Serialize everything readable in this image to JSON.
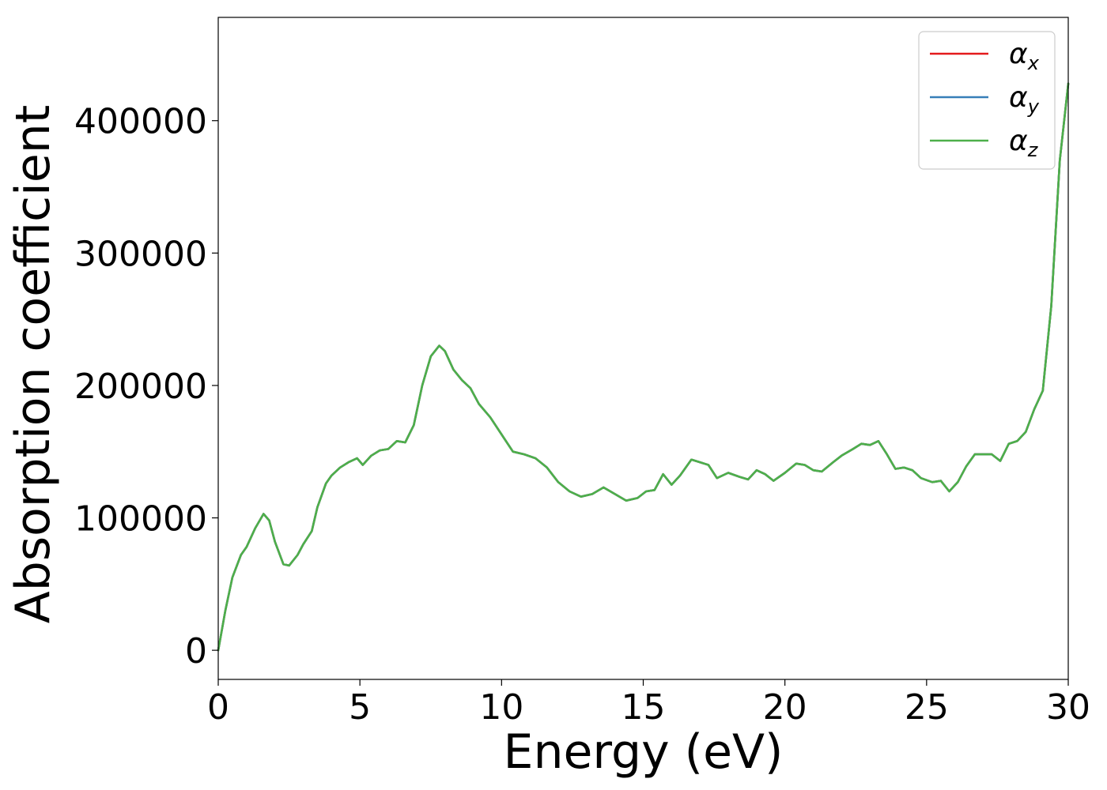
{
  "chart_data": {
    "type": "line",
    "title": "",
    "xlabel": "Energy (eV)",
    "ylabel": "Absorption coefficient",
    "xlim": [
      0,
      30
    ],
    "ylim": [
      -22000,
      478000
    ],
    "xticks": [
      0,
      5,
      10,
      15,
      20,
      25,
      30
    ],
    "yticks": [
      0,
      100000,
      200000,
      300000,
      400000
    ],
    "xtick_labels": [
      "0",
      "5",
      "10",
      "15",
      "20",
      "25",
      "30"
    ],
    "ytick_labels": [
      "0",
      "100000",
      "200000",
      "300000",
      "400000"
    ],
    "grid": false,
    "legend_position": "top-right",
    "x": [
      0,
      0.25,
      0.5,
      0.8,
      1.0,
      1.3,
      1.6,
      1.8,
      2.0,
      2.3,
      2.5,
      2.8,
      3.0,
      3.3,
      3.5,
      3.8,
      4.0,
      4.3,
      4.6,
      4.9,
      5.1,
      5.4,
      5.7,
      6.0,
      6.3,
      6.6,
      6.9,
      7.2,
      7.5,
      7.8,
      8.0,
      8.3,
      8.6,
      8.9,
      9.2,
      9.6,
      10.0,
      10.4,
      10.8,
      11.2,
      11.6,
      12.0,
      12.4,
      12.8,
      13.2,
      13.6,
      14.0,
      14.4,
      14.8,
      15.1,
      15.4,
      15.7,
      16.0,
      16.3,
      16.7,
      17.0,
      17.3,
      17.6,
      18.0,
      18.4,
      18.7,
      19.0,
      19.3,
      19.6,
      20.0,
      20.4,
      20.7,
      21.0,
      21.3,
      21.7,
      22.0,
      22.4,
      22.7,
      23.0,
      23.3,
      23.6,
      23.9,
      24.2,
      24.5,
      24.8,
      25.2,
      25.5,
      25.8,
      26.1,
      26.4,
      26.7,
      27.0,
      27.3,
      27.6,
      27.9,
      28.2,
      28.5,
      28.8,
      29.1,
      29.4,
      29.7,
      30.0
    ],
    "series": [
      {
        "name": "α",
        "subscript": "x",
        "color": "#e41a1c",
        "values": [
          0,
          30000,
          55000,
          72000,
          78000,
          92000,
          103000,
          98000,
          82000,
          65000,
          64000,
          72000,
          80000,
          90000,
          108000,
          126000,
          132000,
          138000,
          142000,
          145000,
          140000,
          147000,
          151000,
          152000,
          158000,
          157000,
          170000,
          200000,
          222000,
          230000,
          226000,
          212000,
          204000,
          198000,
          186000,
          176000,
          163000,
          150000,
          148000,
          145000,
          138000,
          127000,
          120000,
          116000,
          118000,
          123000,
          118000,
          113000,
          115000,
          120000,
          121000,
          133000,
          125000,
          132000,
          144000,
          142000,
          140000,
          130000,
          134000,
          131000,
          129000,
          136000,
          133000,
          128000,
          134000,
          141000,
          140000,
          136000,
          135000,
          142000,
          147000,
          152000,
          156000,
          155000,
          158000,
          148000,
          137000,
          138000,
          136000,
          130000,
          127000,
          128000,
          120000,
          127000,
          139000,
          148000,
          148000,
          148000,
          143000,
          156000,
          158000,
          165000,
          182000,
          196000,
          260000,
          370000,
          428000
        ]
      },
      {
        "name": "α",
        "subscript": "y",
        "color": "#377eb8",
        "values": [
          0,
          30000,
          55000,
          72000,
          78000,
          92000,
          103000,
          98000,
          82000,
          65000,
          64000,
          72000,
          80000,
          90000,
          108000,
          126000,
          132000,
          138000,
          142000,
          145000,
          140000,
          147000,
          151000,
          152000,
          158000,
          157000,
          170000,
          200000,
          222000,
          230000,
          226000,
          212000,
          204000,
          198000,
          186000,
          176000,
          163000,
          150000,
          148000,
          145000,
          138000,
          127000,
          120000,
          116000,
          118000,
          123000,
          118000,
          113000,
          115000,
          120000,
          121000,
          133000,
          125000,
          132000,
          144000,
          142000,
          140000,
          130000,
          134000,
          131000,
          129000,
          136000,
          133000,
          128000,
          134000,
          141000,
          140000,
          136000,
          135000,
          142000,
          147000,
          152000,
          156000,
          155000,
          158000,
          148000,
          137000,
          138000,
          136000,
          130000,
          127000,
          128000,
          120000,
          127000,
          139000,
          148000,
          148000,
          148000,
          143000,
          156000,
          158000,
          165000,
          182000,
          196000,
          260000,
          370000,
          428000
        ]
      },
      {
        "name": "α",
        "subscript": "z",
        "color": "#4daf4a",
        "values": [
          0,
          30000,
          55000,
          72000,
          78000,
          92000,
          103000,
          98000,
          82000,
          65000,
          64000,
          72000,
          80000,
          90000,
          108000,
          126000,
          132000,
          138000,
          142000,
          145000,
          140000,
          147000,
          151000,
          152000,
          158000,
          157000,
          170000,
          200000,
          222000,
          230000,
          226000,
          212000,
          204000,
          198000,
          186000,
          176000,
          163000,
          150000,
          148000,
          145000,
          138000,
          127000,
          120000,
          116000,
          118000,
          123000,
          118000,
          113000,
          115000,
          120000,
          121000,
          133000,
          125000,
          132000,
          144000,
          142000,
          140000,
          130000,
          134000,
          131000,
          129000,
          136000,
          133000,
          128000,
          134000,
          141000,
          140000,
          136000,
          135000,
          142000,
          147000,
          152000,
          156000,
          155000,
          158000,
          148000,
          137000,
          138000,
          136000,
          130000,
          127000,
          128000,
          120000,
          127000,
          139000,
          148000,
          148000,
          148000,
          143000,
          156000,
          158000,
          165000,
          182000,
          196000,
          260000,
          370000,
          428000
        ]
      }
    ]
  }
}
